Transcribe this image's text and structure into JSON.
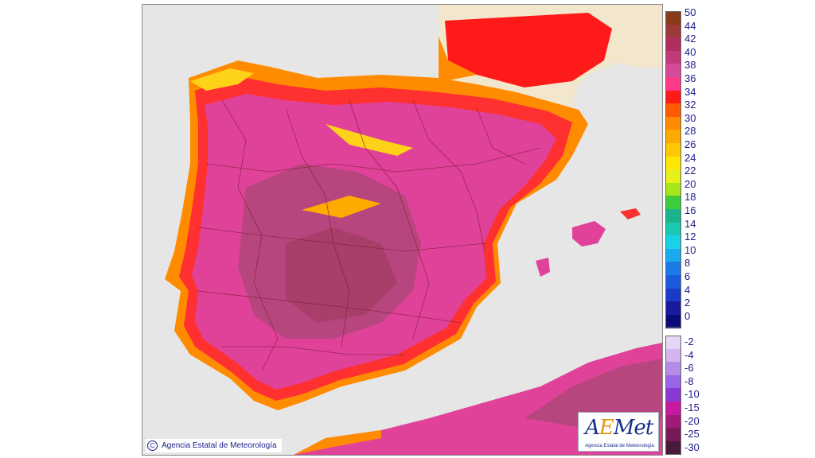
{
  "map": {
    "copyright": "Agencia Estatal de Meteorología",
    "logo_wordmark_a": "A",
    "logo_wordmark_e": "E",
    "logo_wordmark_rest": "Met",
    "logo_subtitle": "Agencia Estatal de Meteorología",
    "copyright_icon": "c-circle-icon",
    "colors": {
      "sea": "#e6e6e6",
      "land_hot": "#d6399a",
      "land_hotter": "#b8347a",
      "land_warm": "#ff2a6a",
      "coast_red": "#ff3030",
      "coast_orange": "#ff8c00",
      "coast_yellow": "#ffd21a",
      "france": "#f2e6cc",
      "borders": "#7a1a30"
    }
  },
  "legend": {
    "positive": [
      {
        "label": "50",
        "color": "#8b3a1a"
      },
      {
        "label": "44",
        "color": "#9c3a3a"
      },
      {
        "label": "42",
        "color": "#b02e5e"
      },
      {
        "label": "40",
        "color": "#c23a7a"
      },
      {
        "label": "38",
        "color": "#d64a9a"
      },
      {
        "label": "36",
        "color": "#ff3a8a"
      },
      {
        "label": "34",
        "color": "#ff1a1a"
      },
      {
        "label": "32",
        "color": "#ff5a00"
      },
      {
        "label": "30",
        "color": "#ff8c00"
      },
      {
        "label": "28",
        "color": "#ffaa00"
      },
      {
        "label": "26",
        "color": "#ffc800"
      },
      {
        "label": "24",
        "color": "#ffe600"
      },
      {
        "label": "22",
        "color": "#e6f01a"
      },
      {
        "label": "20",
        "color": "#a8e61a"
      },
      {
        "label": "18",
        "color": "#3ccc3c"
      },
      {
        "label": "16",
        "color": "#1ab48c"
      },
      {
        "label": "14",
        "color": "#1ac8b4"
      },
      {
        "label": "12",
        "color": "#1ad2e6"
      },
      {
        "label": "10",
        "color": "#1aaaf0"
      },
      {
        "label": "8",
        "color": "#1a7ae6"
      },
      {
        "label": "6",
        "color": "#1a5adc"
      },
      {
        "label": "4",
        "color": "#1a3ac8"
      },
      {
        "label": "2",
        "color": "#1a1aa0"
      },
      {
        "label": "0",
        "color": "#0a0a78"
      }
    ],
    "negative": [
      {
        "label": "-2",
        "color": "#e6d6f5"
      },
      {
        "label": "-4",
        "color": "#d2b4f0"
      },
      {
        "label": "-6",
        "color": "#b48ce6"
      },
      {
        "label": "-8",
        "color": "#9a64e6"
      },
      {
        "label": "-10",
        "color": "#8a3ad2"
      },
      {
        "label": "-15",
        "color": "#c81aa0"
      },
      {
        "label": "-20",
        "color": "#a01a78"
      },
      {
        "label": "-25",
        "color": "#781a5a"
      },
      {
        "label": "-30",
        "color": "#4a1a3a"
      }
    ]
  }
}
